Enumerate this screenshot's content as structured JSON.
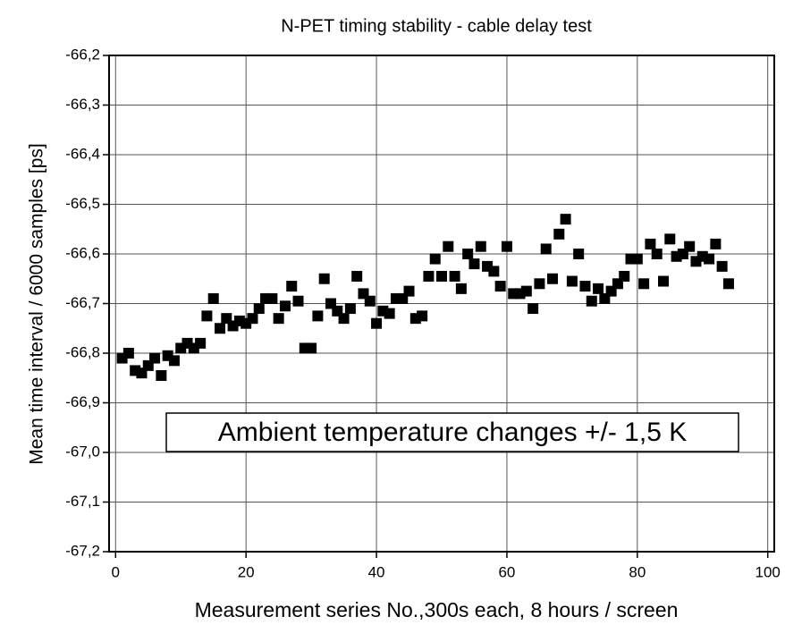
{
  "chart_data": {
    "type": "scatter",
    "title": "N-PET timing stability - cable delay test",
    "x_label": "Measurement series No.,300s each, 8 hours / screen",
    "y_label": "Mean time interval / 6000 samples [ps]",
    "annotation": "Ambient temperature changes +/- 1,5 K",
    "xlim": [
      -1,
      101
    ],
    "ylim": [
      -67.2,
      -66.2
    ],
    "xticks": [
      0,
      20,
      40,
      60,
      80,
      100
    ],
    "yticks": [
      {
        "value": -66.2,
        "label": "-66,2"
      },
      {
        "value": -66.3,
        "label": "-66,3"
      },
      {
        "value": -66.4,
        "label": "-66,4"
      },
      {
        "value": -66.5,
        "label": "-66,5"
      },
      {
        "value": -66.6,
        "label": "-66,6"
      },
      {
        "value": -66.7,
        "label": "-66,7"
      },
      {
        "value": -66.8,
        "label": "-66,8"
      },
      {
        "value": -66.9,
        "label": "-66,9"
      },
      {
        "value": -67.0,
        "label": "-67,0"
      },
      {
        "value": -67.1,
        "label": "-67,1"
      },
      {
        "value": -67.2,
        "label": "-67,2"
      }
    ],
    "grid": true,
    "series": [
      {
        "color": "#000000",
        "x": [
          1,
          2,
          3,
          4,
          5,
          6,
          7,
          8,
          9,
          10,
          11,
          12,
          13,
          14,
          15,
          16,
          17,
          18,
          19,
          20,
          21,
          22,
          23,
          24,
          25,
          26,
          27,
          28,
          29,
          30,
          31,
          32,
          33,
          34,
          35,
          36,
          37,
          38,
          39,
          40,
          41,
          42,
          43,
          44,
          45,
          46,
          47,
          48,
          49,
          50,
          51,
          52,
          53,
          54,
          55,
          56,
          57,
          58,
          59,
          60,
          61,
          62,
          63,
          64,
          65,
          66,
          67,
          68,
          69,
          70,
          71,
          72,
          73,
          74,
          75,
          76,
          77,
          78,
          79,
          80,
          81,
          82,
          83,
          84,
          85,
          86,
          87,
          88,
          89,
          90,
          91,
          92,
          93,
          94
        ],
        "values": [
          -66.81,
          -66.8,
          -66.835,
          -66.84,
          -66.825,
          -66.81,
          -66.845,
          -66.805,
          -66.815,
          -66.79,
          -66.78,
          -66.79,
          -66.78,
          -66.725,
          -66.69,
          -66.75,
          -66.73,
          -66.745,
          -66.735,
          -66.74,
          -66.73,
          -66.71,
          -66.69,
          -66.69,
          -66.73,
          -66.705,
          -66.665,
          -66.695,
          -66.79,
          -66.79,
          -66.725,
          -66.65,
          -66.7,
          -66.715,
          -66.73,
          -66.71,
          -66.645,
          -66.68,
          -66.695,
          -66.74,
          -66.715,
          -66.72,
          -66.69,
          -66.69,
          -66.675,
          -66.73,
          -66.725,
          -66.645,
          -66.61,
          -66.645,
          -66.585,
          -66.645,
          -66.67,
          -66.6,
          -66.62,
          -66.585,
          -66.625,
          -66.635,
          -66.665,
          -66.585,
          -66.68,
          -66.68,
          -66.675,
          -66.71,
          -66.66,
          -66.59,
          -66.65,
          -66.56,
          -66.53,
          -66.655,
          -66.6,
          -66.665,
          -66.695,
          -66.67,
          -66.69,
          -66.675,
          -66.66,
          -66.645,
          -66.61,
          -66.61,
          -66.66,
          -66.58,
          -66.6,
          -66.655,
          -66.57,
          -66.605,
          -66.6,
          -66.585,
          -66.615,
          -66.605,
          -66.61,
          -66.58,
          -66.625,
          -66.66
        ]
      }
    ]
  }
}
